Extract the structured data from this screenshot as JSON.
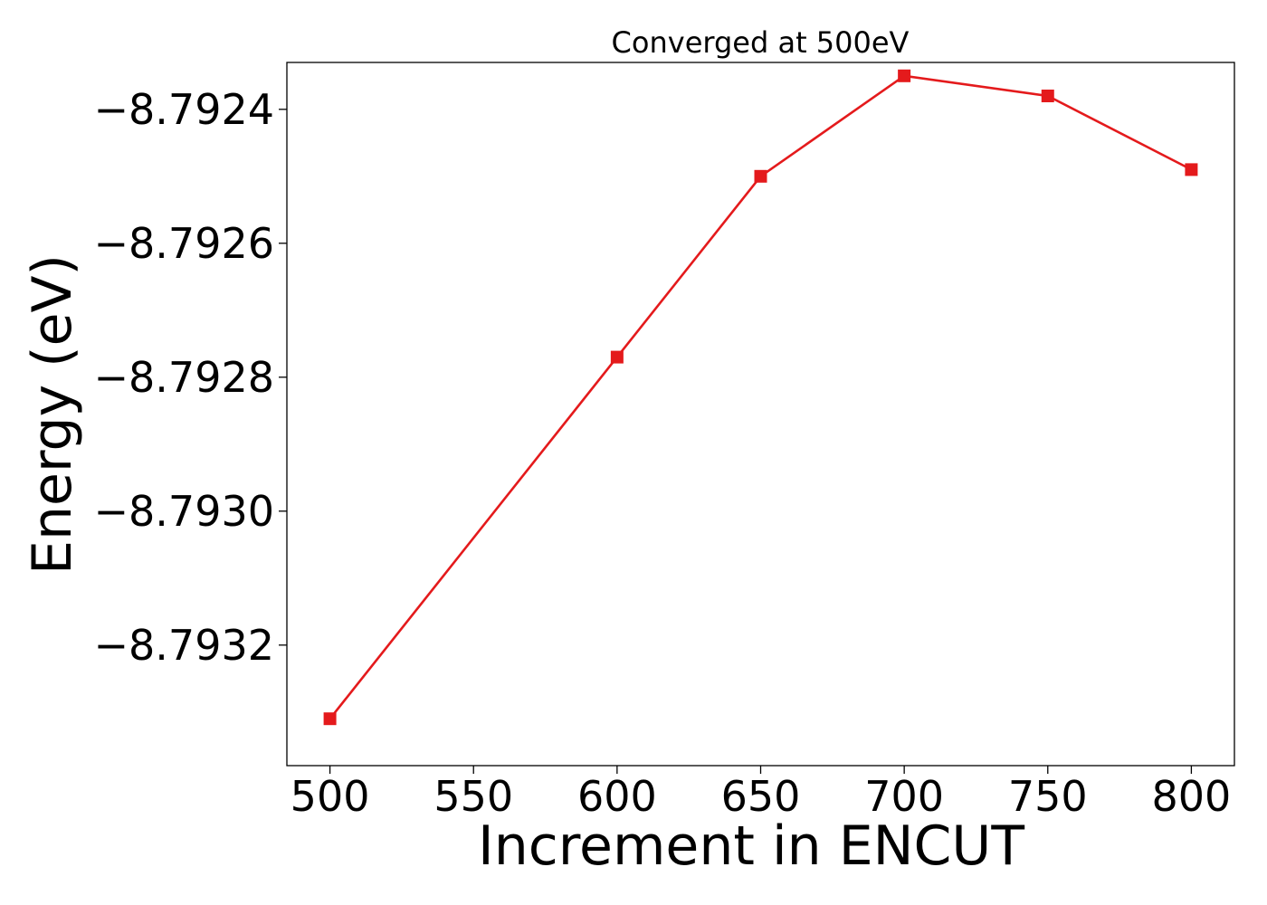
{
  "chart_data": {
    "type": "line",
    "title": "Converged at 500eV",
    "xlabel": "Increment in ENCUT",
    "ylabel": "Energy (eV)",
    "x": [
      500,
      600,
      650,
      700,
      750,
      800
    ],
    "series": [
      {
        "values": [
          -8.79331,
          -8.79277,
          -8.7925,
          -8.79235,
          -8.79238,
          -8.79249
        ],
        "color": "#e41a1c",
        "marker": "square"
      }
    ],
    "xticks": [
      500,
      550,
      600,
      650,
      700,
      750,
      800
    ],
    "xtick_labels": [
      "500",
      "550",
      "600",
      "650",
      "700",
      "750",
      "800"
    ],
    "yticks": [
      -8.7932,
      -8.793,
      -8.7928,
      -8.7926,
      -8.7924
    ],
    "ytick_labels": [
      "−8.7932",
      "−8.7930",
      "−8.7928",
      "−8.7926",
      "−8.7924"
    ],
    "xlim": [
      485,
      815
    ],
    "ylim": [
      -8.79338,
      -8.79233
    ],
    "grid": false,
    "legend": "none"
  }
}
